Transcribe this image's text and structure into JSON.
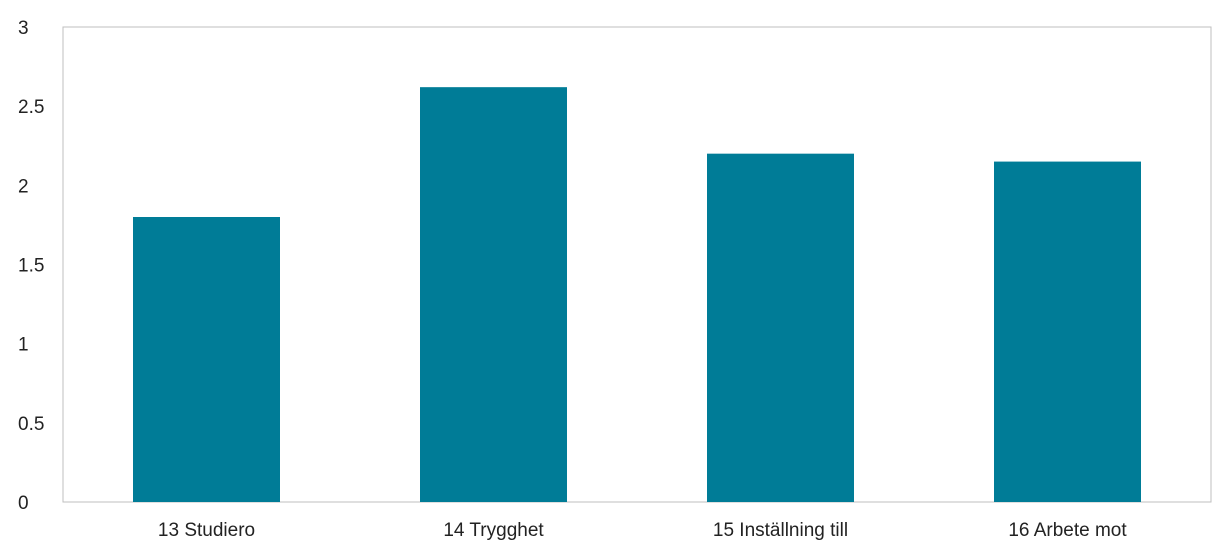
{
  "chart_data": {
    "type": "bar",
    "categories": [
      "13 Studiero",
      "14 Trygghet",
      "15 Inställning till",
      "16 Arbete mot"
    ],
    "values": [
      1.8,
      2.62,
      2.2,
      2.15
    ],
    "ylim": [
      0,
      3
    ],
    "yticks": [
      0,
      0.5,
      1,
      1.5,
      2,
      2.5,
      3
    ],
    "ytick_labels": [
      "0",
      "0.5",
      "1",
      "1.5",
      "2",
      "2.5",
      "3"
    ],
    "grid": false,
    "legend": "none",
    "bar_color": "#007c97",
    "axis_color": "#bfbfbf"
  }
}
